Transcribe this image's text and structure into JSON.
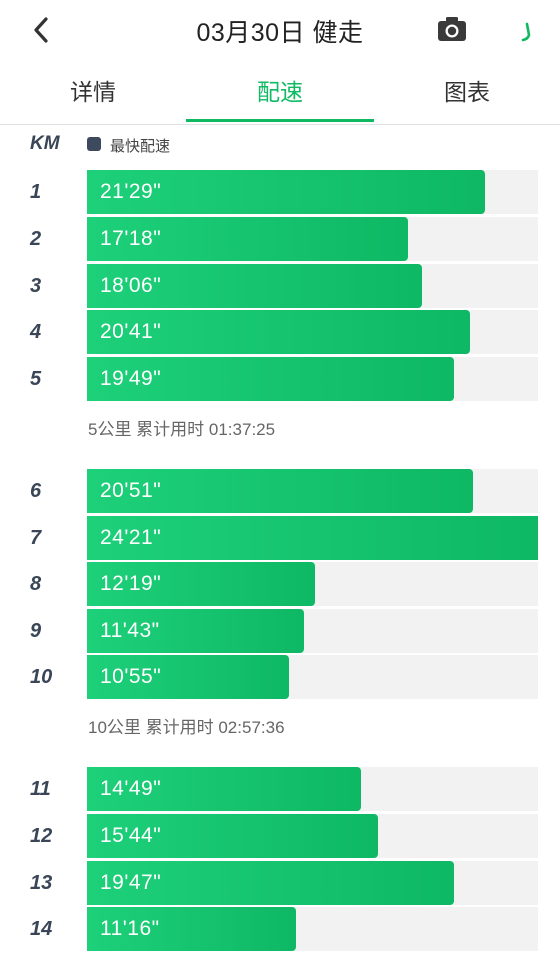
{
  "header": {
    "title": "03月30日 健走",
    "back_icon": "back-arrow-icon",
    "camera_icon": "camera-icon"
  },
  "tabs": [
    {
      "label": "详情",
      "active": false
    },
    {
      "label": "配速",
      "active": true
    },
    {
      "label": "图表",
      "active": false
    }
  ],
  "legend": {
    "km_header": "KM",
    "label": "最快配速"
  },
  "colors": {
    "accent": "#10b860",
    "bar": "#12c06a",
    "track": "#f2f2f2",
    "legend_swatch": "#3d4a5e"
  },
  "km_rows": [
    {
      "km": "1",
      "pace": "21'29\"",
      "fraction": 0.883
    },
    {
      "km": "2",
      "pace": "17'18\"",
      "fraction": 0.711
    },
    {
      "km": "3",
      "pace": "18'06\"",
      "fraction": 0.743
    },
    {
      "km": "4",
      "pace": "20'41\"",
      "fraction": 0.85
    },
    {
      "km": "5",
      "pace": "19'49\"",
      "fraction": 0.814
    },
    {
      "km": "6",
      "pace": "20'51\"",
      "fraction": 0.856
    },
    {
      "km": "7",
      "pace": "24'21\"",
      "fraction": 1.0
    },
    {
      "km": "8",
      "pace": "12'19\"",
      "fraction": 0.506
    },
    {
      "km": "9",
      "pace": "11'43\"",
      "fraction": 0.481
    },
    {
      "km": "10",
      "pace": "10'55\"",
      "fraction": 0.448
    },
    {
      "km": "11",
      "pace": "14'49\"",
      "fraction": 0.608
    },
    {
      "km": "12",
      "pace": "15'44\"",
      "fraction": 0.646
    },
    {
      "km": "13",
      "pace": "19'47\"",
      "fraction": 0.813
    },
    {
      "km": "14",
      "pace": "11'16\"",
      "fraction": 0.463
    }
  ],
  "summaries": [
    {
      "text": "5公里 累计用时 01:37:25"
    },
    {
      "text": "10公里 累计用时 02:57:36"
    }
  ]
}
